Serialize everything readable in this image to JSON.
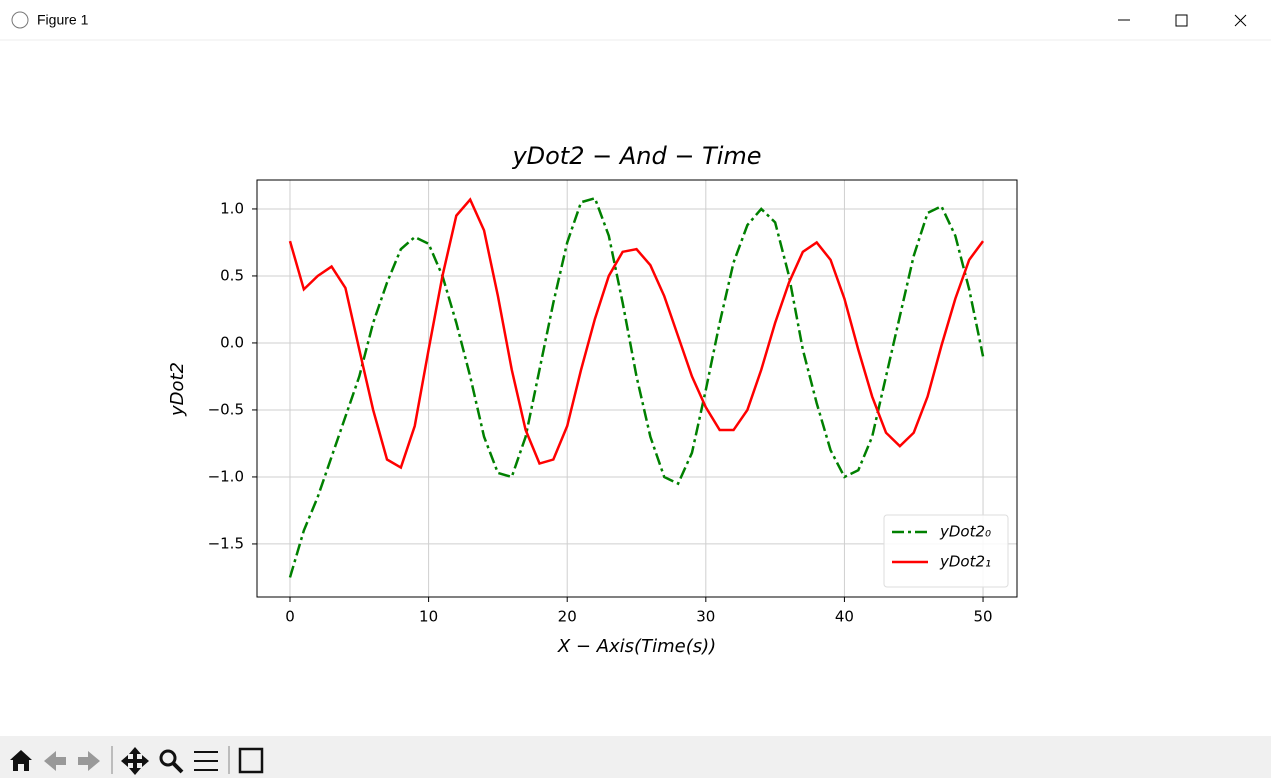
{
  "window_title": "Figure 1",
  "chart_data": {
    "type": "line",
    "title": "yDot2 − And − Time",
    "x_label": "X − Axis(Time(s))",
    "y_label": "yDot2",
    "x": [
      0,
      1,
      2,
      3,
      4,
      5,
      6,
      7,
      8,
      9,
      10,
      11,
      12,
      13,
      14,
      15,
      16,
      17,
      18,
      19,
      20,
      21,
      22,
      23,
      24,
      25,
      26,
      27,
      28,
      29,
      30,
      31,
      32,
      33,
      34,
      35,
      36,
      37,
      38,
      39,
      40,
      41,
      42,
      43,
      44,
      45,
      46,
      47,
      48,
      49,
      50
    ],
    "series": [
      {
        "name": "yDot2₀",
        "color": "#008000",
        "style": "dashdot",
        "values": [
          -1.75,
          -1.4,
          -1.15,
          -0.85,
          -0.55,
          -0.25,
          0.15,
          0.45,
          0.7,
          0.79,
          0.74,
          0.5,
          0.15,
          -0.25,
          -0.7,
          -0.97,
          -1.0,
          -0.7,
          -0.2,
          0.3,
          0.75,
          1.05,
          1.08,
          0.8,
          0.3,
          -0.25,
          -0.7,
          -1.0,
          -1.05,
          -0.82,
          -0.35,
          0.15,
          0.6,
          0.88,
          1.0,
          0.9,
          0.5,
          -0.05,
          -0.45,
          -0.8,
          -1.0,
          -0.95,
          -0.7,
          -0.25,
          0.2,
          0.65,
          0.97,
          1.02,
          0.8,
          0.4,
          -0.1
        ]
      },
      {
        "name": "yDot2₁",
        "color": "#ff0000",
        "style": "solid",
        "values": [
          0.76,
          0.4,
          0.5,
          0.57,
          0.41,
          -0.05,
          -0.5,
          -0.87,
          -0.93,
          -0.62,
          -0.05,
          0.5,
          0.95,
          1.07,
          0.84,
          0.35,
          -0.2,
          -0.65,
          -0.9,
          -0.87,
          -0.62,
          -0.2,
          0.18,
          0.5,
          0.68,
          0.7,
          0.58,
          0.35,
          0.05,
          -0.25,
          -0.48,
          -0.65,
          -0.65,
          -0.5,
          -0.2,
          0.15,
          0.45,
          0.68,
          0.75,
          0.62,
          0.33,
          -0.05,
          -0.4,
          -0.67,
          -0.77,
          -0.67,
          -0.4,
          -0.02,
          0.33,
          0.62,
          0.76
        ]
      }
    ],
    "xlim": [
      -2.38,
      52.45
    ],
    "ylim": [
      -1.896,
      1.216
    ],
    "xticks": [
      0,
      10,
      20,
      30,
      40,
      50
    ],
    "yticks": [
      {
        "value": -1.5,
        "label": "−1.5"
      },
      {
        "value": -1.0,
        "label": "−1.0"
      },
      {
        "value": -0.5,
        "label": "−0.5"
      },
      {
        "value": 0,
        "label": "0.0"
      },
      0.5,
      {
        "value": 1.0,
        "label": "1.0"
      }
    ],
    "grid": true,
    "legend": "lower right"
  }
}
